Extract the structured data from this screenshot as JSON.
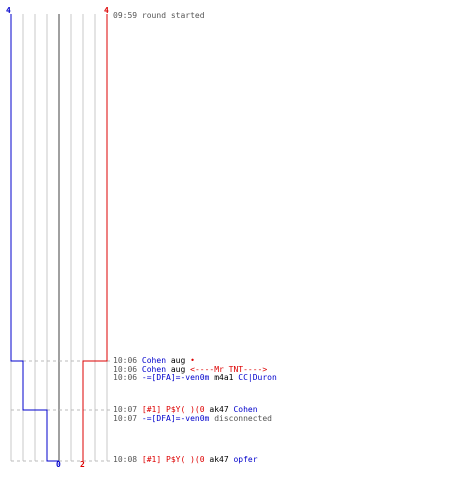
{
  "colors": {
    "team_blue": "#0000cc",
    "team_red": "#dd0000",
    "grid": "#c8c8c8",
    "center_line": "#808080",
    "dashed": "#bbbbbb",
    "time": "#555555",
    "status": "#555555"
  },
  "scores": {
    "blue_start": "4",
    "red_start": "4",
    "blue_end": "0",
    "red_end": "2"
  },
  "log": [
    {
      "time": "09:59",
      "parts": [
        {
          "text": "round started",
          "color": "#555555"
        }
      ]
    },
    {
      "time": "10:06",
      "parts": [
        {
          "text": "Cohen",
          "color": "#0000cc"
        },
        {
          "text": "aug",
          "color": "#000000"
        },
        {
          "text": "•",
          "color": "#dd0000"
        }
      ]
    },
    {
      "time": "10:06",
      "parts": [
        {
          "text": "Cohen",
          "color": "#0000cc"
        },
        {
          "text": "aug",
          "color": "#000000"
        },
        {
          "text": "<----Mr TNT---->",
          "color": "#dd0000"
        }
      ]
    },
    {
      "time": "10:06",
      "parts": [
        {
          "text": "-=[DFA]=-ven0m",
          "color": "#0000cc"
        },
        {
          "text": "m4a1",
          "color": "#000000"
        },
        {
          "text": "CC|Duron",
          "color": "#0000cc"
        }
      ]
    },
    {
      "time": "10:07",
      "parts": [
        {
          "text": "[#1] P$Y( )(0",
          "color": "#dd0000"
        },
        {
          "text": "ak47",
          "color": "#000000"
        },
        {
          "text": "Cohen",
          "color": "#0000cc"
        }
      ]
    },
    {
      "time": "10:07",
      "parts": [
        {
          "text": "-=[DFA]=-ven0m",
          "color": "#0000cc"
        },
        {
          "text": "disconnected",
          "color": "#555555"
        }
      ]
    },
    {
      "time": "10:08",
      "parts": [
        {
          "text": "[#1] P$Y( )(0",
          "color": "#dd0000"
        },
        {
          "text": "ak47",
          "color": "#000000"
        },
        {
          "text": "opfer",
          "color": "#0000cc"
        }
      ]
    }
  ]
}
